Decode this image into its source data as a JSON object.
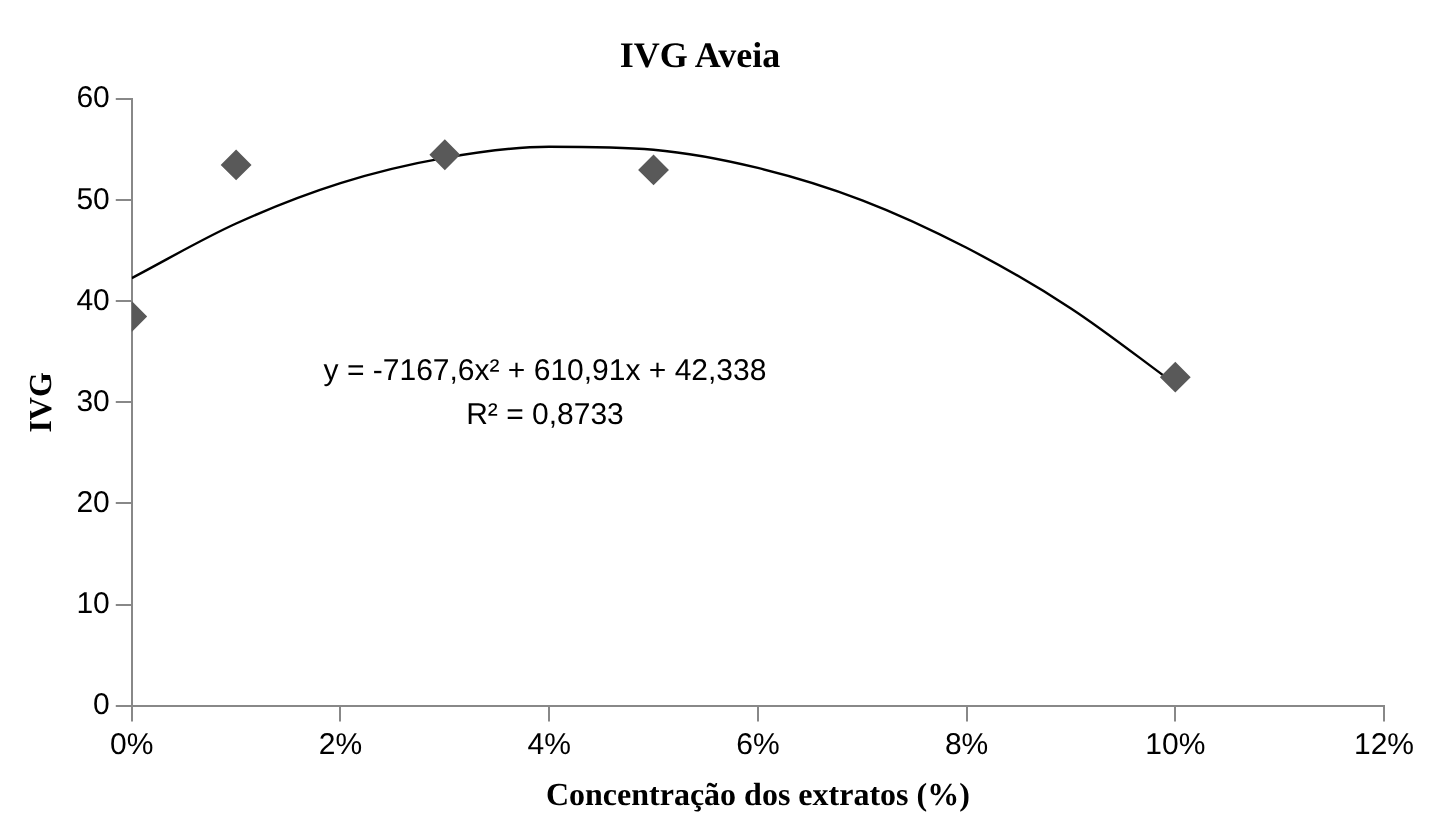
{
  "chart_data": {
    "type": "scatter",
    "title": "IVG Aveia",
    "xlabel": "Concentração dos extratos (%)",
    "ylabel": "IVG",
    "series": [
      {
        "color": "#595959",
        "marker": "diamond",
        "x": [
          0,
          0.01,
          0.03,
          0.05,
          0.1
        ],
        "values": [
          38.5,
          53.5,
          54.5,
          53,
          32.5
        ]
      },
      {
        "type": "line",
        "color": "#000000",
        "marker": "none",
        "x": [
          0,
          0.01,
          0.02,
          0.03,
          0.04,
          0.05,
          0.06,
          0.07,
          0.08,
          0.09,
          0.1
        ],
        "values": [
          42.3,
          47.7,
          51.7,
          54.2,
          55.3,
          55,
          53.2,
          50,
          45.3,
          39.3,
          31.8
        ]
      }
    ],
    "xlim": [
      0,
      0.12
    ],
    "xticks": [
      {
        "value": 0,
        "label": "0%"
      },
      {
        "value": 0.02,
        "label": "2%"
      },
      {
        "value": 0.04,
        "label": "4%"
      },
      {
        "value": 0.06,
        "label": "6%"
      },
      {
        "value": 0.08,
        "label": "8%"
      },
      {
        "value": 0.1,
        "label": "10%"
      },
      {
        "value": 0.12,
        "label": "12%"
      }
    ],
    "ylim": [
      0,
      60
    ],
    "yticks": [
      0,
      10,
      20,
      30,
      40,
      50,
      60
    ],
    "annotations": [
      "y = -7167,6x² + 610,91x + 42,338",
      "R² = 0,8733"
    ],
    "grid": false,
    "legend": false
  }
}
